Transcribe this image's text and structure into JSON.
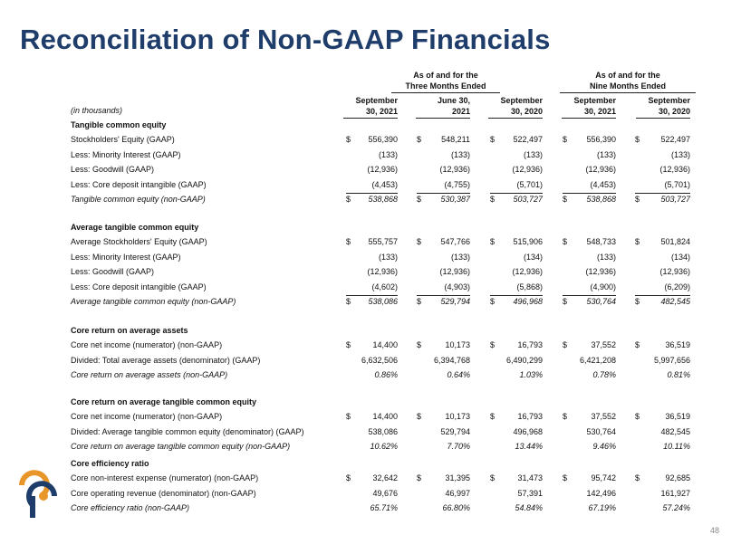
{
  "title": "Reconciliation of Non-GAAP Financials",
  "header": {
    "group1": [
      "As of and for the",
      "Three Months Ended"
    ],
    "group2": [
      "As of and for the",
      "Nine Months Ended"
    ],
    "columns": [
      [
        "September",
        "30, 2021"
      ],
      [
        "June 30,",
        "2021"
      ],
      [
        "September",
        "30, 2020"
      ],
      [
        "September",
        "30, 2021"
      ],
      [
        "September",
        "30, 2020"
      ]
    ],
    "units": "(in thousands)"
  },
  "currency_symbol": "$",
  "sections": [
    {
      "title": "Tangible common equity",
      "rows": [
        {
          "label": "Stockholders' Equity (GAAP)",
          "dollar": true,
          "values": [
            "556,390",
            "548,211",
            "522,497",
            "556,390",
            "522,497"
          ]
        },
        {
          "label": "Less: Minority Interest (GAAP)",
          "values": [
            "(133)",
            "(133)",
            "(133)",
            "(133)",
            "(133)"
          ]
        },
        {
          "label": "Less: Goodwill (GAAP)",
          "values": [
            "(12,936)",
            "(12,936)",
            "(12,936)",
            "(12,936)",
            "(12,936)"
          ]
        },
        {
          "label": "Less: Core deposit intangible (GAAP)",
          "values": [
            "(4,453)",
            "(4,755)",
            "(5,701)",
            "(4,453)",
            "(5,701)"
          ]
        },
        {
          "label": "Tangible common equity (non-GAAP)",
          "dollar": true,
          "italic": true,
          "values": [
            "538,868",
            "530,387",
            "503,727",
            "538,868",
            "503,727"
          ]
        }
      ]
    },
    {
      "title": "Average tangible common equity",
      "rows": [
        {
          "label": "Average Stockholders' Equity (GAAP)",
          "dollar": true,
          "values": [
            "555,757",
            "547,766",
            "515,906",
            "548,733",
            "501,824"
          ]
        },
        {
          "label": "Less: Minority Interest (GAAP)",
          "values": [
            "(133)",
            "(133)",
            "(134)",
            "(133)",
            "(134)"
          ]
        },
        {
          "label": "Less: Goodwill (GAAP)",
          "values": [
            "(12,936)",
            "(12,936)",
            "(12,936)",
            "(12,936)",
            "(12,936)"
          ]
        },
        {
          "label": "Less: Core deposit intangible (GAAP)",
          "values": [
            "(4,602)",
            "(4,903)",
            "(5,868)",
            "(4,900)",
            "(6,209)"
          ]
        },
        {
          "label": "Average tangible common equity (non-GAAP)",
          "dollar": true,
          "italic": true,
          "values": [
            "538,086",
            "529,794",
            "496,968",
            "530,764",
            "482,545"
          ]
        }
      ]
    },
    {
      "title": "Core return on average assets",
      "rows": [
        {
          "label": "Core net income (numerator) (non-GAAP)",
          "dollar": true,
          "values": [
            "14,400",
            "10,173",
            "16,793",
            "37,552",
            "36,519"
          ]
        },
        {
          "label": "Divided: Total average assets (denominator) (GAAP)",
          "values": [
            "6,632,506",
            "6,394,768",
            "6,490,299",
            "6,421,208",
            "5,997,656"
          ]
        },
        {
          "label": "Core return on average assets (non-GAAP)",
          "italic": true,
          "values": [
            "0.86%",
            "0.64%",
            "1.03%",
            "0.78%",
            "0.81%"
          ]
        }
      ]
    },
    {
      "title": "Core return on average tangible common equity",
      "rows": [
        {
          "label": "Core net income (numerator) (non-GAAP)",
          "dollar": true,
          "values": [
            "14,400",
            "10,173",
            "16,793",
            "37,552",
            "36,519"
          ]
        },
        {
          "label": "Divided: Average tangible common equity (denominator) (GAAP)",
          "values": [
            "538,086",
            "529,794",
            "496,968",
            "530,764",
            "482,545"
          ]
        },
        {
          "label": "Core return on average tangible common equity (non-GAAP)",
          "italic": true,
          "values": [
            "10.62%",
            "7.70%",
            "13.44%",
            "9.46%",
            "10.11%"
          ]
        }
      ]
    },
    {
      "title": "Core efficiency ratio",
      "rows": [
        {
          "label": "Core non-interest expense (numerator) (non-GAAP)",
          "dollar": true,
          "values": [
            "32,642",
            "31,395",
            "31,473",
            "95,742",
            "92,685"
          ]
        },
        {
          "label": "Core operating revenue (denominator) (non-GAAP)",
          "values": [
            "49,676",
            "46,997",
            "57,391",
            "142,496",
            "161,927"
          ]
        },
        {
          "label": "Core efficiency ratio (non-GAAP)",
          "italic": true,
          "values": [
            "65.71%",
            "66.80%",
            "54.84%",
            "67.19%",
            "57.24%"
          ]
        }
      ]
    }
  ],
  "page_number": "48",
  "brand": {
    "primary": "#1f3d6b",
    "logo_orange": "#e8962a",
    "logo_navy": "#1f3d6b"
  }
}
